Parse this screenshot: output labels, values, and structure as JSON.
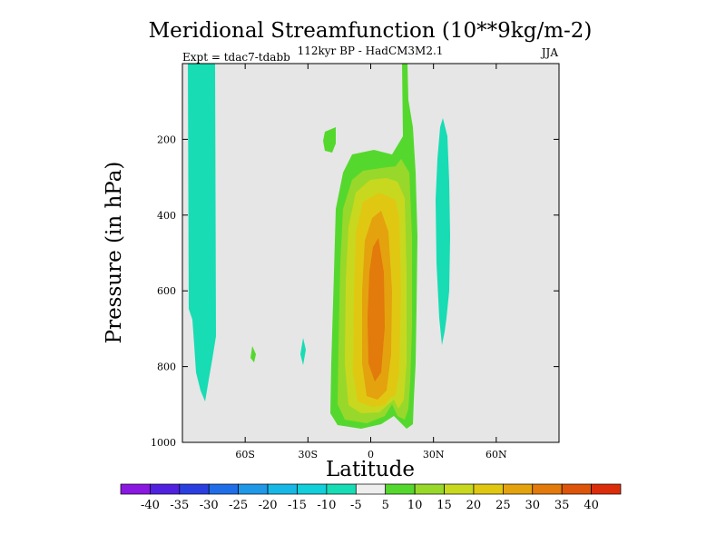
{
  "chart_data": {
    "type": "heatmap",
    "title": "Meridional Streamfunction (10**9kg/m-2)",
    "subtitle": "112kyr BP - HadCM3M2.1",
    "left_label": "Expt = tdac7-tdabb",
    "season": "JJA",
    "xlabel": "Latitude",
    "ylabel": "Pressure (in hPa)",
    "xlim": [
      -90,
      90
    ],
    "ylim": [
      1000,
      0
    ],
    "x_ticks": [
      -60,
      -30,
      0,
      30,
      60
    ],
    "x_tick_labels": [
      "60S",
      "30S",
      "0",
      "30N",
      "60N"
    ],
    "y_ticks": [
      200,
      400,
      600,
      800,
      1000
    ],
    "y_tick_labels": [
      "200",
      "400",
      "600",
      "800",
      "1000"
    ],
    "colorbar": {
      "labels": [
        "-40",
        "-35",
        "-30",
        "-25",
        "-20",
        "-15",
        "-10",
        "-5",
        "5",
        "10",
        "15",
        "20",
        "25",
        "30",
        "35",
        "40"
      ],
      "colors": [
        "#8a18e0",
        "#5022e0",
        "#2b3fe0",
        "#1f6ee8",
        "#1f98e8",
        "#17b8e6",
        "#12cfd9",
        "#17dcb4",
        "#eeeeee",
        "#55d82e",
        "#98d82a",
        "#c8d81f",
        "#e0c812",
        "#e4a20e",
        "#e27a0c",
        "#dc550a",
        "#dc2d0a"
      ]
    },
    "regions": [
      {
        "name": "sh-negative-cell",
        "value": -5,
        "lat_range": [
          -86,
          -72
        ],
        "p_range": [
          0,
          890
        ]
      },
      {
        "name": "nh-negative-cell",
        "value": -5,
        "lat_range": [
          30,
          35
        ],
        "p_range": [
          185,
          735
        ]
      },
      {
        "name": "tropical-positive-cell",
        "value": 30,
        "lat_range": [
          -12,
          22
        ],
        "p_range": [
          0,
          965
        ]
      },
      {
        "name": "small-positive-patch-1",
        "value": 5,
        "lat_range": [
          -53,
          -50
        ],
        "p_range": [
          755,
          795
        ]
      },
      {
        "name": "small-positive-patch-2",
        "value": 5,
        "lat_range": [
          -21,
          -16
        ],
        "p_range": [
          200,
          245
        ]
      }
    ]
  }
}
